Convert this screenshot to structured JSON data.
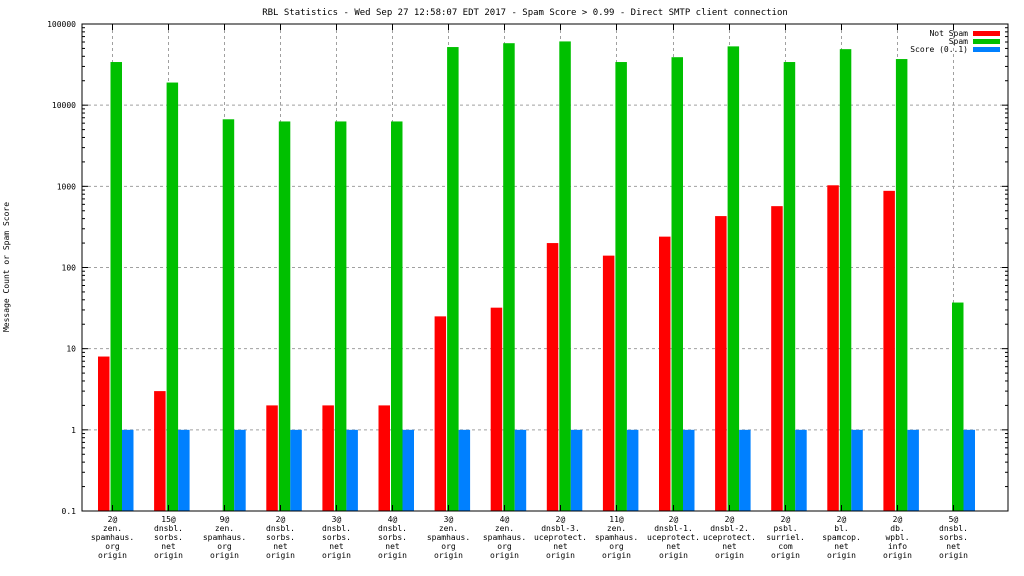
{
  "chart_data": {
    "type": "bar",
    "title": "RBL Statistics - Wed Sep 27 12:58:07 EDT 2017 - Spam Score > 0.99 - Direct SMTP client connection",
    "xlabel": "",
    "ylabel": "Message Count or Spam Score",
    "yscale": "log",
    "ylim": [
      0.1,
      100000
    ],
    "yticks": [
      0.1,
      1,
      10,
      100,
      1000,
      10000,
      100000
    ],
    "ytick_labels": [
      "0.1",
      "1",
      "10",
      "100",
      "1000",
      "10000",
      "100000"
    ],
    "grid": true,
    "legend_position": "top-right",
    "categories": [
      [
        "2@",
        "zen.",
        "spamhaus.",
        "org",
        "origin"
      ],
      [
        "15@",
        "dnsbl.",
        "sorbs.",
        "net",
        "origin"
      ],
      [
        "9@",
        "zen.",
        "spamhaus.",
        "org",
        "origin"
      ],
      [
        "2@",
        "dnsbl.",
        "sorbs.",
        "net",
        "origin"
      ],
      [
        "3@",
        "dnsbl.",
        "sorbs.",
        "net",
        "origin"
      ],
      [
        "4@",
        "dnsbl.",
        "sorbs.",
        "net",
        "origin"
      ],
      [
        "3@",
        "zen.",
        "spamhaus.",
        "org",
        "origin"
      ],
      [
        "4@",
        "zen.",
        "spamhaus.",
        "org",
        "origin"
      ],
      [
        "2@",
        "dnsbl-3.",
        "uceprotect.",
        "net",
        "origin"
      ],
      [
        "11@",
        "zen.",
        "spamhaus.",
        "org",
        "origin"
      ],
      [
        "2@",
        "dnsbl-1.",
        "uceprotect.",
        "net",
        "origin"
      ],
      [
        "2@",
        "dnsbl-2.",
        "uceprotect.",
        "net",
        "origin"
      ],
      [
        "2@",
        "psbl.",
        "surriel.",
        "com",
        "origin"
      ],
      [
        "2@",
        "bl.",
        "spamcop.",
        "net",
        "origin"
      ],
      [
        "2@",
        "db.",
        "wpbl.",
        "info",
        "origin"
      ],
      [
        "5@",
        "dnsbl.",
        "sorbs.",
        "net",
        "origin"
      ]
    ],
    "series": [
      {
        "name": "Not Spam",
        "color": "#ff0000",
        "values": [
          8,
          3,
          null,
          2,
          2,
          2,
          25,
          32,
          200,
          140,
          240,
          430,
          570,
          1030,
          880,
          null
        ]
      },
      {
        "name": "Spam",
        "color": "#00c000",
        "values": [
          34000,
          19000,
          6700,
          6300,
          6300,
          6300,
          52000,
          58000,
          61000,
          34000,
          39000,
          53000,
          34000,
          49000,
          37000,
          37
        ]
      },
      {
        "name": "Score (0..1)",
        "color": "#0080ff",
        "values": [
          1,
          1,
          1,
          1,
          1,
          1,
          1,
          1,
          1,
          1,
          1,
          1,
          1,
          1,
          1,
          1
        ]
      }
    ]
  }
}
